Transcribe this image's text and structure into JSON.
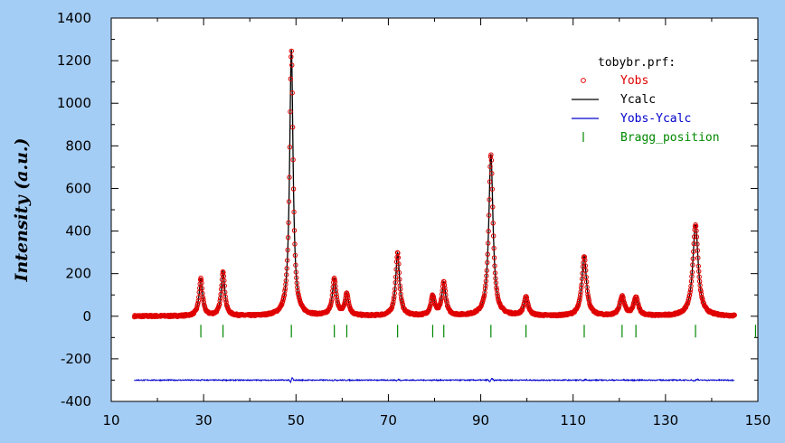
{
  "chart_data": {
    "type": "scatter",
    "xlabel": "",
    "ylabel": "Intensity (a.u.)",
    "xlim": [
      10,
      150
    ],
    "ylim": [
      -400,
      1400
    ],
    "x_ticks": [
      "10",
      "30",
      "50",
      "70",
      "90",
      "110",
      "130",
      "150"
    ],
    "y_ticks": [
      "-400",
      "-200",
      "0",
      "200",
      "400",
      "600",
      "800",
      "1000",
      "1200",
      "1400"
    ],
    "x_range": [
      15,
      145
    ],
    "background": "0",
    "difference_offset": -300,
    "peaks": [
      {
        "x": 29.4,
        "y": 175,
        "w": 0.45
      },
      {
        "x": 34.2,
        "y": 210,
        "w": 0.45
      },
      {
        "x": 49.0,
        "y": 1250,
        "w": 0.45
      },
      {
        "x": 58.3,
        "y": 170,
        "w": 0.5
      },
      {
        "x": 61.0,
        "y": 100,
        "w": 0.5
      },
      {
        "x": 72.0,
        "y": 295,
        "w": 0.5
      },
      {
        "x": 79.6,
        "y": 90,
        "w": 0.5
      },
      {
        "x": 82.0,
        "y": 155,
        "w": 0.5
      },
      {
        "x": 92.2,
        "y": 760,
        "w": 0.55
      },
      {
        "x": 99.8,
        "y": 85,
        "w": 0.55
      },
      {
        "x": 112.4,
        "y": 280,
        "w": 0.6
      },
      {
        "x": 120.6,
        "y": 90,
        "w": 0.6
      },
      {
        "x": 123.6,
        "y": 85,
        "w": 0.6
      },
      {
        "x": 136.5,
        "y": 430,
        "w": 0.7
      }
    ],
    "bragg_positions": [
      29.4,
      34.2,
      49.0,
      58.3,
      61.0,
      72.0,
      79.6,
      82.0,
      92.2,
      99.8,
      112.4,
      120.6,
      123.6,
      136.5,
      149.5
    ],
    "bragg_y": -70,
    "legend": {
      "title": "tobybr.prf:",
      "placement": "top-right",
      "items": [
        {
          "label": "Yobs",
          "color": "#e00000",
          "marker": "circle"
        },
        {
          "label": "Ycalc",
          "color": "#000000",
          "marker": "line"
        },
        {
          "label": "Yobs-Ycalc",
          "color": "#0000cc",
          "marker": "line"
        },
        {
          "label": "Bragg_position",
          "color": "#008800",
          "marker": "tick"
        }
      ]
    },
    "colors": {
      "obs": "#e00000",
      "calc": "#000000",
      "diff": "#0000cc",
      "bragg": "#008800",
      "plot_bg": "#ffffff",
      "frame_bg": "#a4cdf5"
    }
  }
}
